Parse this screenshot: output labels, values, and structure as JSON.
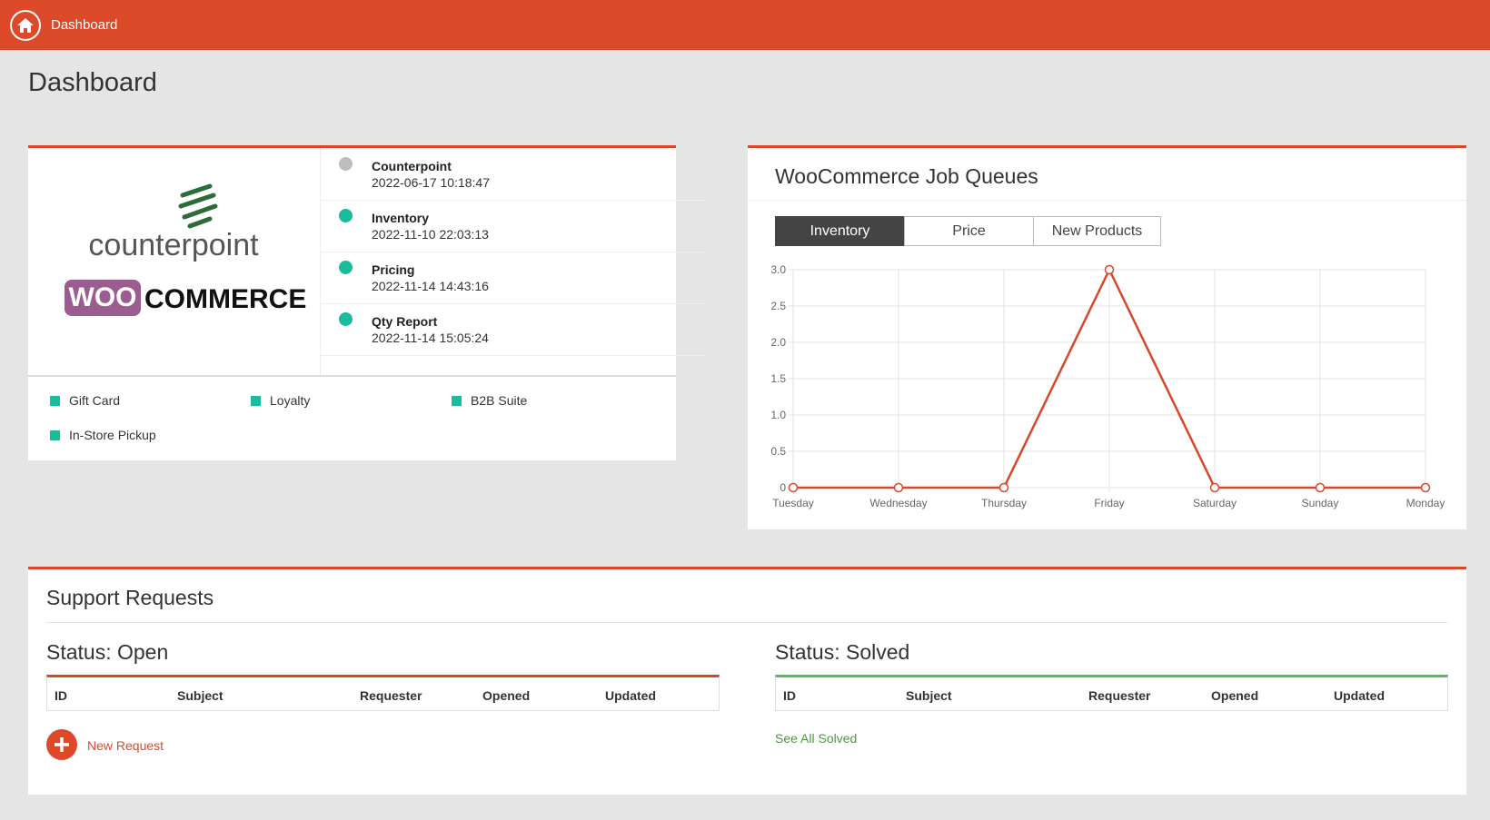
{
  "header": {
    "breadcrumb": "Dashboard"
  },
  "page_title": "Dashboard",
  "integration": {
    "logo_text": [
      "counterpoint",
      "WOO",
      "COMMERCE"
    ],
    "statuses": [
      {
        "name": "Counterpoint",
        "time": "2022-06-17 10:18:47",
        "color": "#bdbdbd"
      },
      {
        "name": "Inventory",
        "time": "2022-11-10 22:03:13",
        "color": "#1abc9c"
      },
      {
        "name": "Pricing",
        "time": "2022-11-14 14:43:16",
        "color": "#1abc9c"
      },
      {
        "name": "Qty Report",
        "time": "2022-11-14 15:05:24",
        "color": "#1abc9c"
      }
    ],
    "features": [
      "Gift Card",
      "Loyalty",
      "B2B Suite",
      "In-Store Pickup"
    ],
    "feature_color": "#1abc9c"
  },
  "queues": {
    "title": "WooCommerce Job Queues",
    "tabs": [
      "Inventory",
      "Price",
      "New Products"
    ],
    "chart_data": {
      "type": "line",
      "categories": [
        "Tuesday",
        "Wednesday",
        "Thursday",
        "Friday",
        "Saturday",
        "Sunday",
        "Monday"
      ],
      "values": [
        0,
        0,
        0,
        3,
        0,
        0,
        0
      ],
      "color": "#d9472b",
      "ylim": [
        0,
        3
      ],
      "yticks": [
        0,
        0.5,
        {
          "value": 1,
          "label": "1.0"
        },
        1.5,
        {
          "value": 2,
          "label": "2.0"
        },
        2.5,
        {
          "value": 3,
          "label": "3.0"
        }
      ],
      "grid": true
    }
  },
  "support": {
    "title": "Support Requests",
    "open": {
      "title": "Status: Open",
      "columns": [
        "ID",
        "Subject",
        "Requester",
        "Opened",
        "Updated"
      ],
      "action": "New Request"
    },
    "solved": {
      "title": "Status: Solved",
      "columns": [
        "ID",
        "Subject",
        "Requester",
        "Opened",
        "Updated"
      ],
      "action": "See All Solved"
    }
  }
}
